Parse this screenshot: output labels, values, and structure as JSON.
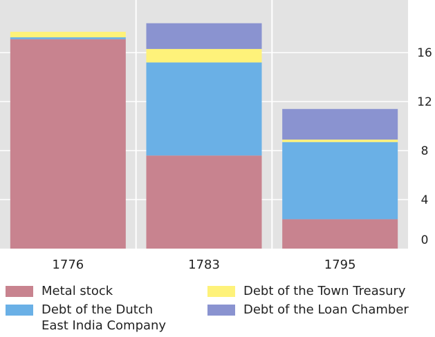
{
  "chart_data": {
    "type": "bar",
    "stacked": true,
    "categories": [
      "1776",
      "1783",
      "1795"
    ],
    "series": [
      {
        "name": "Metal stock",
        "color": "#c8838f",
        "values": [
          17.1,
          7.6,
          2.4
        ]
      },
      {
        "name": "Debt of the Dutch\nEast India Company",
        "color": "#6ab0e6",
        "values": [
          0.15,
          7.6,
          6.3
        ]
      },
      {
        "name": "Debt of the Town Treasury",
        "color": "#fef27a",
        "values": [
          0.45,
          1.1,
          0.2
        ]
      },
      {
        "name": "Debt of the Loan Chamber",
        "color": "#8a93d0",
        "values": [
          0.0,
          2.1,
          2.5
        ]
      }
    ],
    "yticks": [
      "0",
      "4",
      "8",
      "12",
      "16"
    ],
    "ylim": [
      0,
      20
    ],
    "grid": true,
    "y_axis_position": "right",
    "legend_position": "bottom"
  }
}
